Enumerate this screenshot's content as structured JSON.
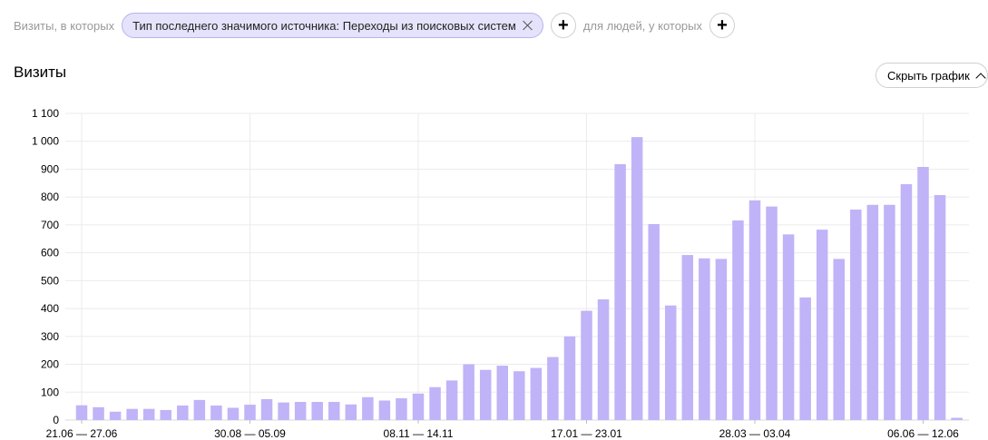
{
  "filters": {
    "visits_label": "Визиты, в которых",
    "chip_label": "Тип последнего значимого источника: Переходы из поисковых систем",
    "add_label": "+",
    "people_label": "для людей, у которых"
  },
  "section": {
    "title": "Визиты",
    "hide_chart_label": "Скрыть график"
  },
  "chart_data": {
    "type": "bar",
    "bar_color": "#c1b3f7",
    "ylim": [
      0,
      1100
    ],
    "y_ticks": [
      "0",
      "100",
      "200",
      "300",
      "400",
      "500",
      "600",
      "700",
      "800",
      "900",
      "1 000",
      "1 100"
    ],
    "x_tick_labels": [
      {
        "index": 0,
        "label": "21.06 — 27.06"
      },
      {
        "index": 10,
        "label": "30.08 — 05.09"
      },
      {
        "index": 20,
        "label": "08.11 — 14.11"
      },
      {
        "index": 30,
        "label": "17.01 — 23.01"
      },
      {
        "index": 40,
        "label": "28.03 — 03.04"
      },
      {
        "index": 50,
        "label": "06.06 — 12.06"
      }
    ],
    "grid": true,
    "values": [
      53,
      46,
      30,
      40,
      40,
      36,
      52,
      72,
      52,
      44,
      55,
      75,
      63,
      65,
      65,
      65,
      56,
      82,
      70,
      78,
      95,
      118,
      142,
      200,
      180,
      195,
      175,
      187,
      226,
      300,
      392,
      433,
      918,
      1015,
      703,
      411,
      592,
      580,
      578,
      716,
      788,
      766,
      666,
      440,
      683,
      578,
      755,
      772,
      772,
      846,
      908,
      807,
      8
    ]
  }
}
